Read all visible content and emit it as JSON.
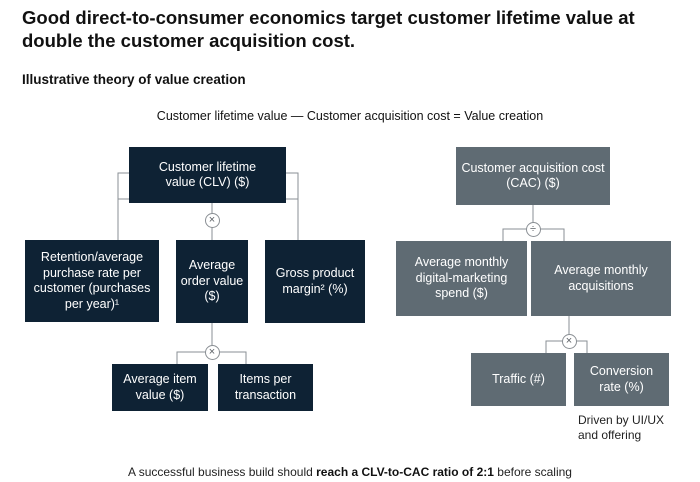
{
  "title": "Good direct-to-consumer economics target customer lifetime value at double the customer acquisition cost.",
  "subtitle": "Illustrative theory of value creation",
  "equation": "Customer lifetime value — Customer acquisition cost = Value creation",
  "clv": {
    "root": "Customer lifetime value (CLV) ($)",
    "operator": "×",
    "children": {
      "retention": "Retention/average purchase rate per customer (purchases per year)¹",
      "aov": "Average order value ($)",
      "margin": "Gross product margin² (%)"
    },
    "aov_operator": "×",
    "aov_children": {
      "item_value": "Average item value ($)",
      "items_per_tx": "Items per transaction"
    }
  },
  "cac": {
    "root": "Customer acquisition cost (CAC) ($)",
    "operator": "÷",
    "children": {
      "spend": "Average monthly digital-marketing spend ($)",
      "acquisitions": "Average monthly acquisitions"
    },
    "acq_operator": "×",
    "acq_children": {
      "traffic": "Traffic (#)",
      "conversion": "Conversion rate (%)"
    },
    "note": "Driven by UI/UX and offering"
  },
  "footer": {
    "prefix": "A successful business build should ",
    "bold": "reach a CLV-to-CAC ratio of 2:1",
    "suffix": " before scaling"
  },
  "colors": {
    "clv_boxes": "#0e2234",
    "cac_boxes": "#5f6b73",
    "connector": "#8a8f94"
  }
}
